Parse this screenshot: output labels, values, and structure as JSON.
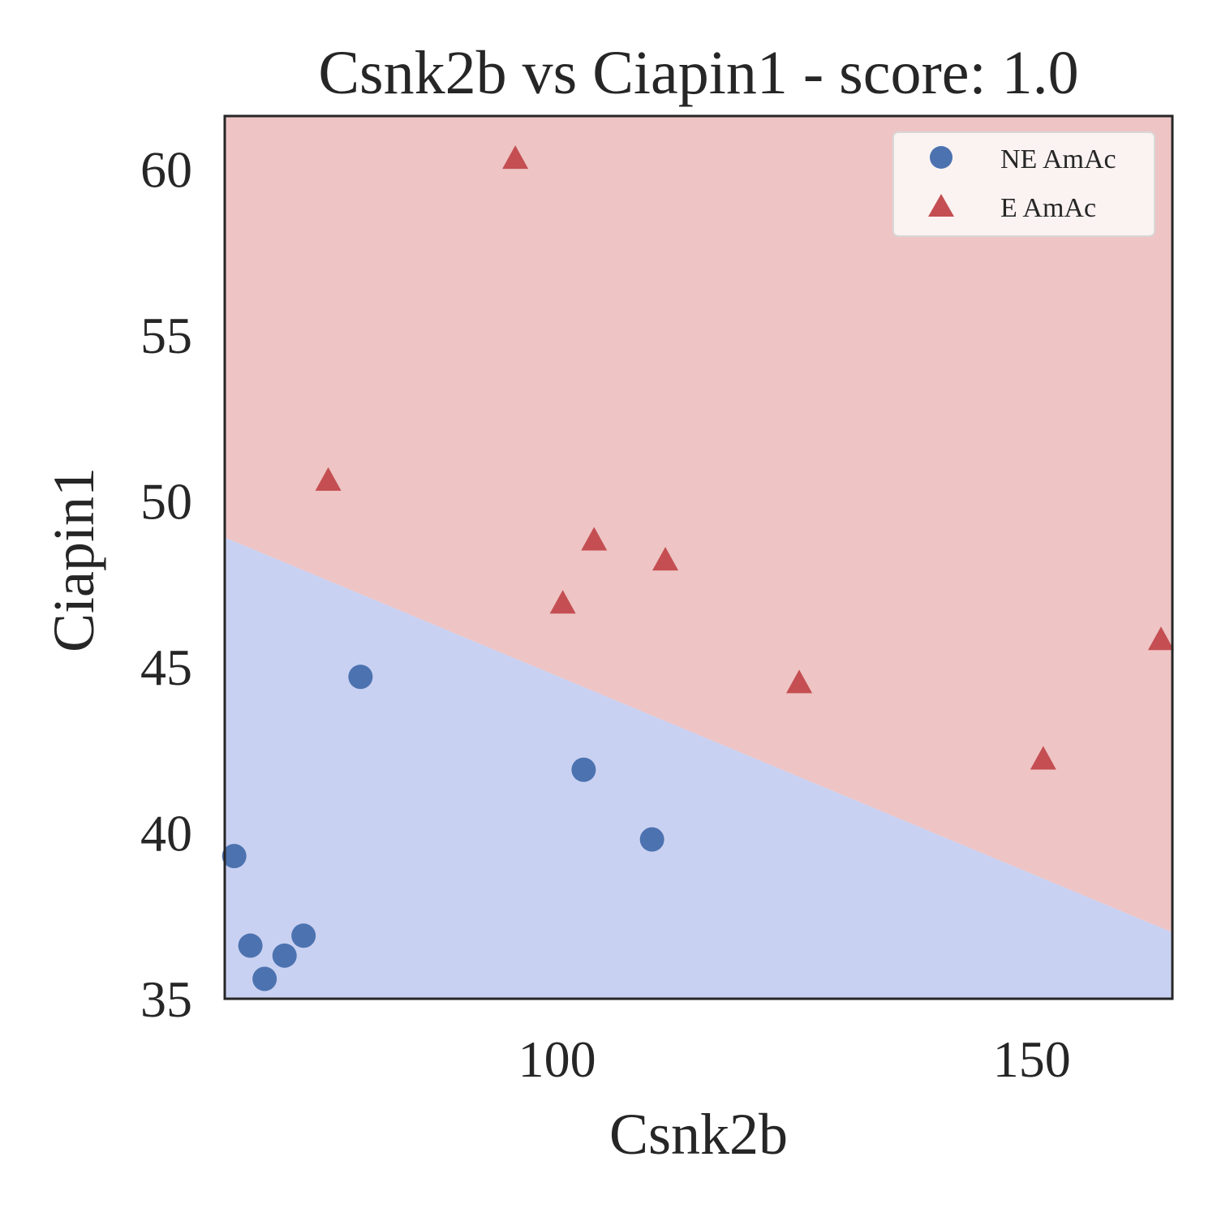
{
  "chart_data": {
    "type": "scatter",
    "title": "Csnk2b vs Ciapin1 - score: 1.0",
    "xlabel": "Csnk2b",
    "ylabel": "Ciapin1",
    "xlim": [
      65,
      164.8
    ],
    "ylim": [
      35,
      61.6
    ],
    "xticks": [
      100,
      150
    ],
    "yticks": [
      35,
      40,
      45,
      50,
      55,
      60
    ],
    "grid": false,
    "legend_position": "top-right",
    "decision_boundary": {
      "x": [
        65,
        164.8
      ],
      "y": [
        48.9,
        37.0
      ],
      "upper_region_color": "#eec4c4",
      "lower_region_color": "#c9d1f2"
    },
    "series": [
      {
        "name": "NE AmAc",
        "marker": "circle",
        "color": "#4c72b0",
        "points": [
          [
            66.0,
            39.3
          ],
          [
            67.7,
            36.6
          ],
          [
            69.2,
            35.6
          ],
          [
            71.3,
            36.3
          ],
          [
            73.3,
            36.9
          ],
          [
            79.3,
            44.7
          ],
          [
            102.8,
            41.9
          ],
          [
            110.0,
            39.8
          ]
        ]
      },
      {
        "name": "E AmAc",
        "marker": "triangle",
        "color": "#c44e52",
        "points": [
          [
            75.9,
            50.6
          ],
          [
            95.6,
            60.3
          ],
          [
            100.6,
            46.9
          ],
          [
            103.9,
            48.8
          ],
          [
            111.4,
            48.2
          ],
          [
            125.5,
            44.5
          ],
          [
            151.2,
            42.2
          ],
          [
            163.6,
            45.8
          ]
        ]
      }
    ]
  }
}
